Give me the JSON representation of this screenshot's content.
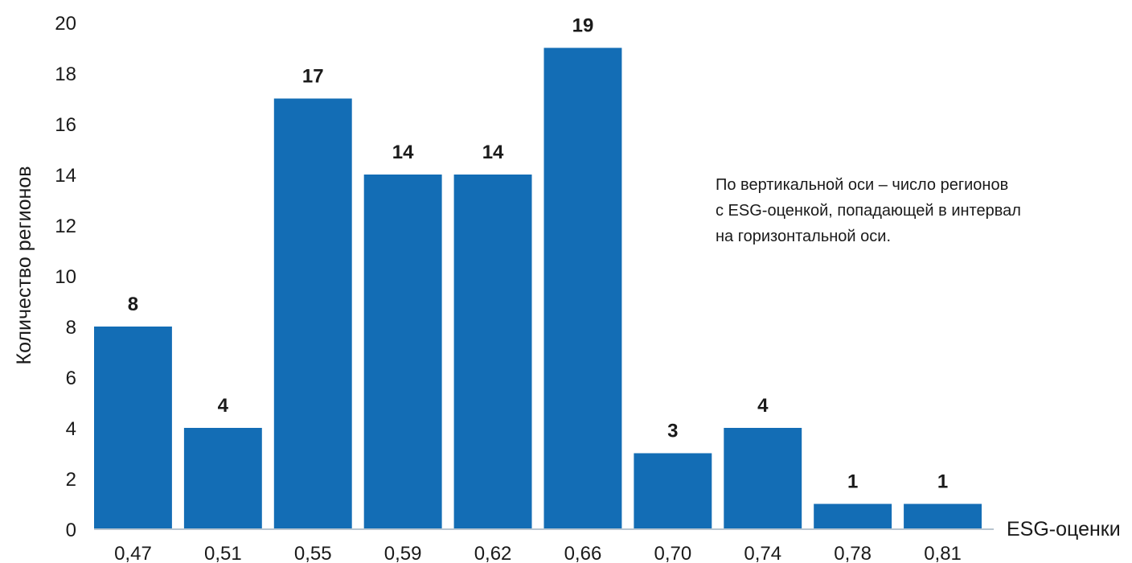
{
  "chart_data": {
    "type": "bar",
    "categories": [
      "0,47",
      "0,51",
      "0,55",
      "0,59",
      "0,62",
      "0,66",
      "0,70",
      "0,74",
      "0,78",
      "0,81"
    ],
    "values": [
      8,
      4,
      17,
      14,
      14,
      19,
      3,
      4,
      1,
      1
    ],
    "title": "",
    "xlabel": "ESG-оценки",
    "ylabel": "Количество регионов",
    "ylim": [
      0,
      20
    ],
    "yticks": [
      0,
      2,
      4,
      6,
      8,
      10,
      12,
      14,
      16,
      18,
      20
    ],
    "grid": false,
    "data_labels": true,
    "bar_color": "#136db5",
    "annotation": [
      "По вертикальной оси – число регионов",
      "с ESG-оценкой, попадающей в интервал",
      "на горизонтальной оси."
    ]
  }
}
